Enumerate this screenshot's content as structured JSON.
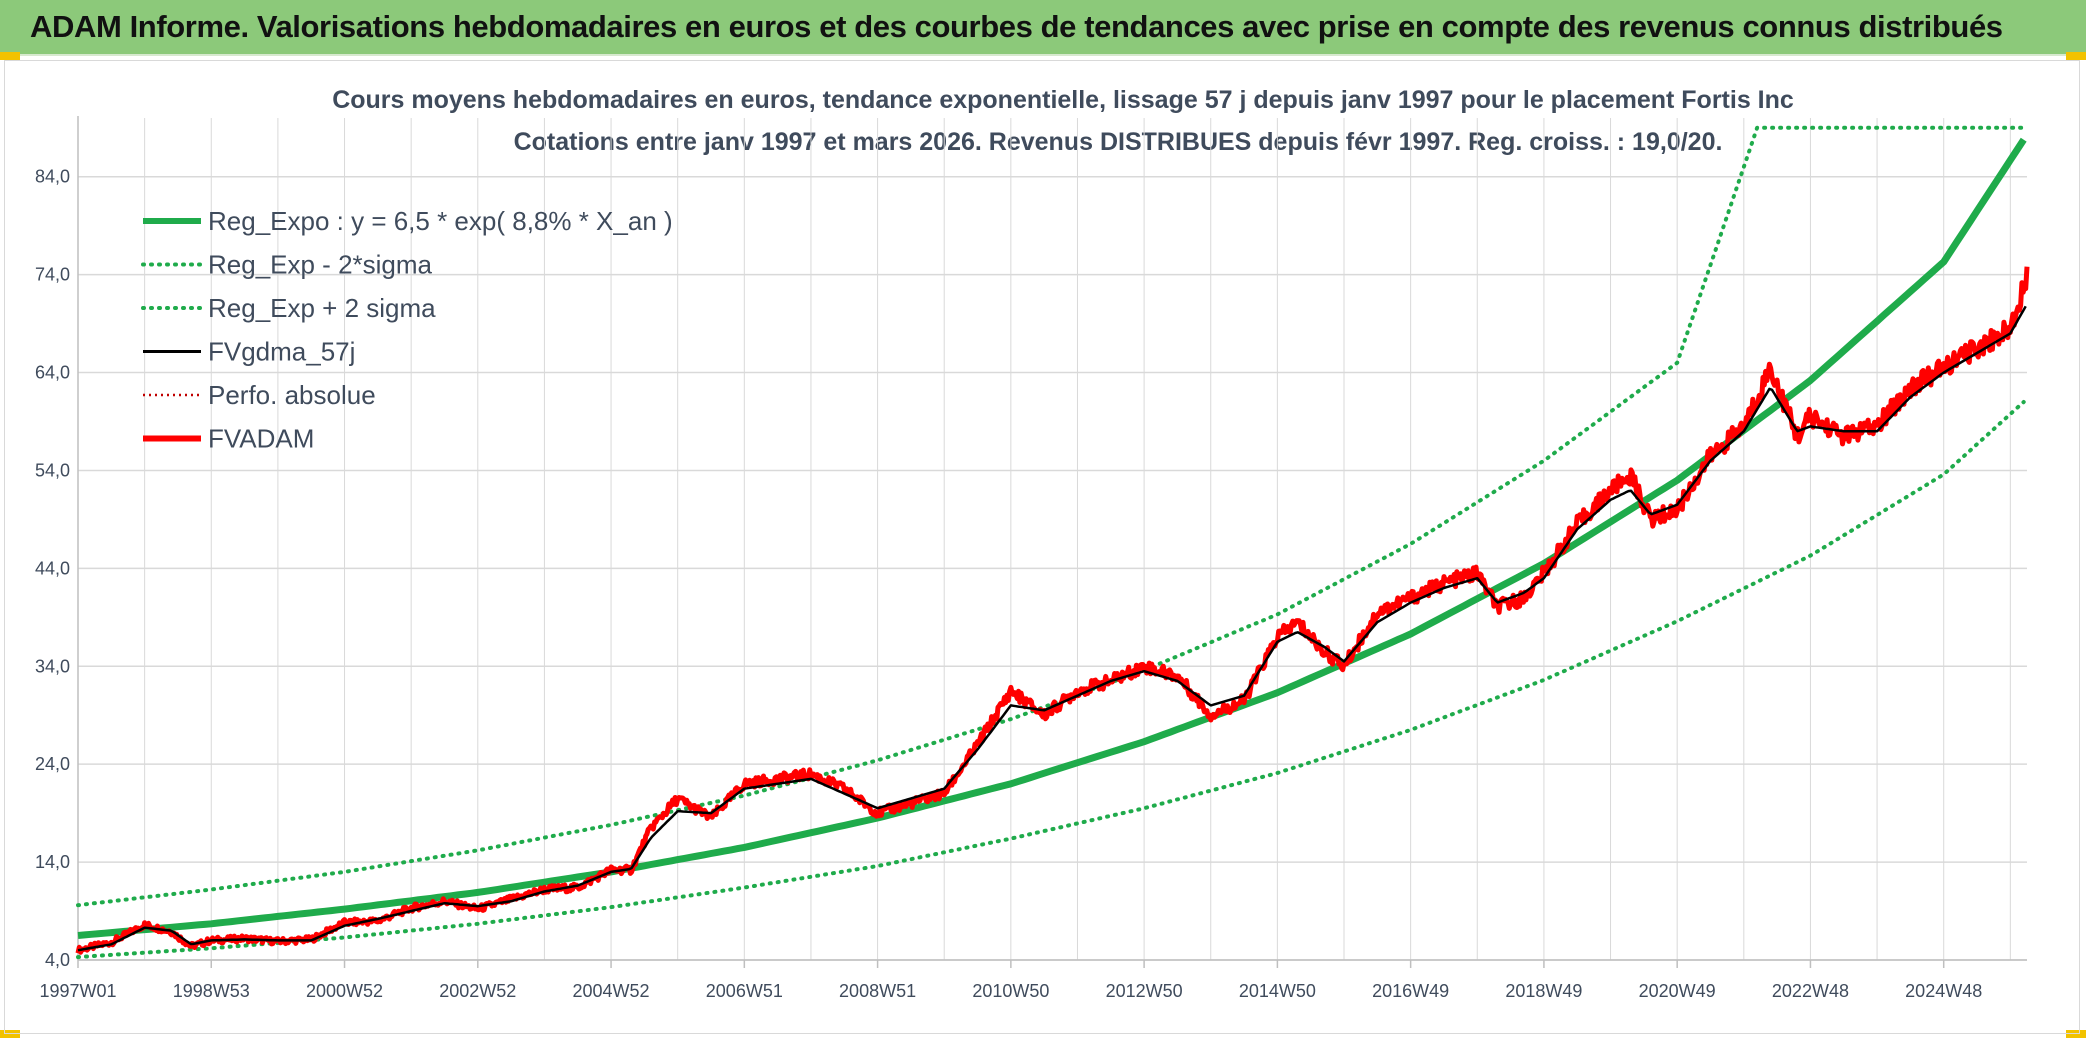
{
  "banner": {
    "title": "ADAM Informe. Valorisations hebdomadaires en euros et des courbes de tendances avec prise en compte des revenus connus distribués"
  },
  "colors": {
    "banner_bg": "#8cc97a",
    "trend": "#1fab4b",
    "band": "#1fab4b",
    "smoothed": "#000000",
    "perf_abs": "#c00000",
    "fvadam": "#ff0000",
    "grid": "#d9d9d9",
    "text": "#3f4b5c"
  },
  "chart_data": {
    "type": "line",
    "title_line1": "Cours moyens hebdomadaires en euros, tendance exponentielle, lissage 57 j depuis janv 1997 pour le placement Fortis Inc",
    "title_line2": "Cotations entre janv 1997 et mars 2026. Revenus DISTRIBUES depuis févr 1997. Reg. croiss. : 19,0/20.",
    "xlabel": "",
    "ylabel": "",
    "x_tick_labels": [
      "1997W01",
      "1998W53",
      "2000W52",
      "2002W52",
      "2004W52",
      "2006W51",
      "2008W51",
      "2010W50",
      "2012W50",
      "2014W50",
      "2016W49",
      "2018W49",
      "2020W49",
      "2022W48",
      "2024W48"
    ],
    "x_tick_years": [
      1997,
      1999,
      2001,
      2003,
      2005,
      2007,
      2009,
      2011,
      2013,
      2015,
      2017,
      2019,
      2021,
      2023,
      2025
    ],
    "xlim": [
      1997,
      2026.25
    ],
    "ylim": [
      4,
      90
    ],
    "y_ticks": [
      4,
      14,
      24,
      34,
      44,
      54,
      64,
      74,
      84
    ],
    "y_tick_labels": [
      "4,0",
      "14,0",
      "24,0",
      "34,0",
      "44,0",
      "54,0",
      "64,0",
      "74,0",
      "84,0"
    ],
    "grid": true,
    "legend_position": "top-left",
    "legend": [
      {
        "label": "Reg_Expo : y = 6,5 * exp( 8,8% *  X_an )",
        "style": "solid-thick",
        "color": "#1fab4b"
      },
      {
        "label": "Reg_Exp - 2*sigma",
        "style": "dotted",
        "color": "#1fab4b"
      },
      {
        "label": "Reg_Exp + 2 sigma",
        "style": "dotted",
        "color": "#1fab4b"
      },
      {
        "label": "FVgdma_57j",
        "style": "solid",
        "color": "#000000"
      },
      {
        "label": "Perfo. absolue",
        "style": "dotted-thin",
        "color": "#c00000"
      },
      {
        "label": "FVADAM",
        "style": "solid-thick",
        "color": "#ff0000"
      }
    ],
    "series": [
      {
        "name": "Reg_Expo : y = 6,5 * exp( 8,8% *  X_an )",
        "x": [
          1997,
          1999,
          2001,
          2003,
          2005,
          2007,
          2009,
          2011,
          2013,
          2015,
          2017,
          2019,
          2021,
          2023,
          2025,
          2026.25
        ],
        "values": [
          6.5,
          7.7,
          9.2,
          10.9,
          13.0,
          15.5,
          18.5,
          22.0,
          26.3,
          31.3,
          37.3,
          44.5,
          53.0,
          63.2,
          75.3,
          88.3
        ]
      },
      {
        "name": "Reg_Exp - 2*sigma",
        "x": [
          1997,
          1999,
          2001,
          2003,
          2005,
          2007,
          2009,
          2011,
          2013,
          2015,
          2017,
          2019,
          2021,
          2023,
          2025,
          2026.25
        ],
        "values": [
          4.3,
          5.2,
          6.3,
          7.7,
          9.4,
          11.4,
          13.6,
          16.4,
          19.5,
          23.1,
          27.5,
          32.6,
          38.6,
          45.3,
          53.6,
          61.3
        ]
      },
      {
        "name": "Reg_Exp + 2 sigma",
        "x": [
          1997,
          1999,
          2001,
          2003,
          2005,
          2007,
          2009,
          2011,
          2013,
          2015,
          2017,
          2019,
          2021,
          2022.2,
          2023,
          2025,
          2026.25
        ],
        "values": [
          9.6,
          11.2,
          13.0,
          15.2,
          17.8,
          20.8,
          24.4,
          28.6,
          33.6,
          39.3,
          46.5,
          55.0,
          65.0,
          89.0,
          89.0,
          89.0,
          89.0
        ]
      },
      {
        "name": "FVgdma_57j",
        "x": [
          1997,
          1997.5,
          1998,
          1998.4,
          1998.7,
          1999,
          1999.5,
          2000,
          2000.5,
          2001,
          2001.5,
          2002,
          2002.5,
          2003,
          2003.5,
          2004,
          2004.5,
          2005,
          2005.3,
          2005.6,
          2006,
          2006.5,
          2007,
          2007.5,
          2008,
          2008.5,
          2009,
          2009.5,
          2010,
          2010.5,
          2011,
          2011.5,
          2012,
          2012.5,
          2013,
          2013.5,
          2014,
          2014.5,
          2015,
          2015.3,
          2015.7,
          2016,
          2016.5,
          2017,
          2017.5,
          2018,
          2018.3,
          2018.7,
          2019,
          2019.5,
          2020,
          2020.3,
          2020.6,
          2021,
          2021.5,
          2022,
          2022.4,
          2022.8,
          2023,
          2023.5,
          2024,
          2024.5,
          2025,
          2025.5,
          2026,
          2026.25
        ],
        "values": [
          5.0,
          5.6,
          7.3,
          7.0,
          5.6,
          6.0,
          6.1,
          6.0,
          6.0,
          7.5,
          8.2,
          9.0,
          9.8,
          9.5,
          10.0,
          11.0,
          11.6,
          13.0,
          13.3,
          16.5,
          19.2,
          19.0,
          21.5,
          22.0,
          22.5,
          21.0,
          19.5,
          20.5,
          21.5,
          25.5,
          30.0,
          29.5,
          31.0,
          32.5,
          33.5,
          32.5,
          30.0,
          31.0,
          36.5,
          37.5,
          36.0,
          34.5,
          38.5,
          40.5,
          42.0,
          43.0,
          40.5,
          41.5,
          43.0,
          48.0,
          51.0,
          52.0,
          49.5,
          50.5,
          55.0,
          58.0,
          62.5,
          58.0,
          58.5,
          58.0,
          58.0,
          61.5,
          64.0,
          66.0,
          68.0,
          71.0
        ]
      },
      {
        "name": "FVADAM",
        "x": [
          1997,
          1997.5,
          1998,
          1998.4,
          1998.7,
          1999,
          1999.5,
          2000,
          2000.5,
          2001,
          2001.5,
          2002,
          2002.5,
          2003,
          2003.5,
          2004,
          2004.5,
          2005,
          2005.3,
          2005.6,
          2006,
          2006.5,
          2007,
          2007.5,
          2008,
          2008.5,
          2009,
          2009.5,
          2010,
          2010.5,
          2011,
          2011.5,
          2012,
          2012.5,
          2013,
          2013.5,
          2014,
          2014.5,
          2015,
          2015.3,
          2015.7,
          2016,
          2016.5,
          2017,
          2017.5,
          2018,
          2018.3,
          2018.7,
          2019,
          2019.5,
          2020,
          2020.3,
          2020.6,
          2021,
          2021.5,
          2022,
          2022.4,
          2022.8,
          2023,
          2023.5,
          2024,
          2024.5,
          2025,
          2025.5,
          2026,
          2026.25
        ],
        "values": [
          5.0,
          5.8,
          7.6,
          6.9,
          5.4,
          6.0,
          6.2,
          5.9,
          6.1,
          7.8,
          8.0,
          9.3,
          10.0,
          9.2,
          10.2,
          11.2,
          11.4,
          13.2,
          13.2,
          17.5,
          20.5,
          18.5,
          22.0,
          22.5,
          23.0,
          21.5,
          19.0,
          20.0,
          21.0,
          26.0,
          31.5,
          29.0,
          31.5,
          32.5,
          34.0,
          33.0,
          29.0,
          30.5,
          37.0,
          38.5,
          35.5,
          34.0,
          39.5,
          41.0,
          42.5,
          43.5,
          40.0,
          41.0,
          43.5,
          48.5,
          52.0,
          53.5,
          49.0,
          50.0,
          55.5,
          58.5,
          64.5,
          57.5,
          59.5,
          57.5,
          58.5,
          62.5,
          64.5,
          66.5,
          68.5,
          74.0
        ]
      }
    ]
  }
}
